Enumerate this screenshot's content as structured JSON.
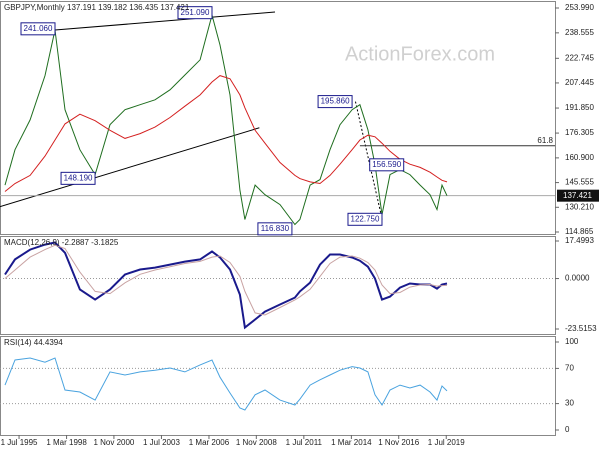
{
  "chart_data": [
    {
      "type": "line",
      "title": "GBPJPY,Monthly  137.191 139.182 136.435 137.421",
      "watermark": "ActionForex.com",
      "x": [
        1994.71,
        1995.27,
        1996.12,
        1996.96,
        1997.52,
        1998.08,
        1998.92,
        1999.77,
        2000.61,
        2001.45,
        2002.3,
        2003.14,
        2003.98,
        2004.82,
        2005.67,
        2006.34,
        2006.79,
        2007.35,
        2007.91,
        2008.19,
        2008.76,
        2009.32,
        2010.16,
        2011.0,
        2011.28,
        2011.85,
        2012.41,
        2012.97,
        2013.53,
        2014.21,
        2014.65,
        2015.1,
        2015.5,
        2015.89,
        2016.34,
        2016.9,
        2017.46,
        2018.03,
        2018.59,
        2018.98,
        2019.26,
        2019.54
      ],
      "series": [
        {
          "color": "#1f6e1f",
          "values": [
            144,
            166,
            184.5,
            212,
            240.3,
            190.8,
            166,
            150.5,
            181.5,
            190.8,
            193.9,
            197,
            203.2,
            212.4,
            221.8,
            249.6,
            231,
            200,
            141,
            122.6,
            144,
            138,
            131.9,
            119.5,
            122.6,
            144,
            147.4,
            166,
            181.5,
            190.8,
            193.9,
            178.4,
            156.7,
            125.7,
            150.5,
            153.6,
            150.5,
            144,
            138,
            128.8,
            144,
            137.421
          ]
        },
        {
          "color": "#d42020",
          "values": [
            140,
            145,
            150,
            162,
            172,
            182,
            188,
            184,
            178,
            173,
            176,
            180,
            186,
            193,
            200,
            208,
            212,
            210,
            200,
            192,
            178,
            170,
            158,
            150,
            148,
            146,
            145,
            150,
            157,
            166,
            172,
            175,
            174,
            170,
            165,
            160,
            157,
            155,
            152,
            149,
            147,
            146
          ]
        }
      ],
      "annotations": [
        {
          "value": 241.06,
          "label": "241.060",
          "x": 1997.52
        },
        {
          "value": 148.19,
          "label": "148.190",
          "x": 1999.77
        },
        {
          "value": 251.09,
          "label": "251.090",
          "x": 2006.34
        },
        {
          "value": 116.83,
          "label": "116.830",
          "x": 2010.83
        },
        {
          "value": 195.86,
          "label": "195.860",
          "x": 2014.21
        },
        {
          "value": 156.59,
          "label": "156.590",
          "x": 2015.2
        },
        {
          "value": 122.75,
          "label": "122.750",
          "x": 2015.89
        }
      ],
      "trend_lines": [
        {
          "x": [
            1994.43,
            2009.0
          ],
          "y": [
            130.6,
            179.6
          ],
          "color": "#000000"
        },
        {
          "x": [
            1997.52,
            2009.88
          ],
          "y": [
            240.3,
            251.5
          ],
          "color": "#000000"
        },
        {
          "x": [
            2014.4,
            2015.9
          ],
          "y": [
            195.86,
            122.75
          ],
          "color": "#000000",
          "dash": true
        }
      ],
      "fib": {
        "level": 61.8,
        "y": 168.4,
        "x": [
          2014.65,
          2025.61
        ]
      },
      "last": 137.421,
      "xlim": [
        1994.43,
        2025.61
      ],
      "ylim": [
        113.62,
        258.34
      ],
      "yticks": [
        {
          "value": 253.99,
          "label": "253.990"
        },
        238.555,
        222.745,
        207.445,
        {
          "value": 191.85,
          "label": "191.850"
        },
        176.305,
        {
          "value": 160.9,
          "label": "160.900"
        },
        145.555,
        {
          "value": 130.21,
          "label": "130.210"
        },
        114.865
      ]
    },
    {
      "type": "line",
      "title": "MACD(12,26,9) -2.2887 -3.1825",
      "x": [
        1994.71,
        1995.27,
        1996.12,
        1996.96,
        1997.52,
        1998.08,
        1998.92,
        1999.77,
        2000.61,
        2001.45,
        2002.3,
        2003.14,
        2003.98,
        2004.82,
        2005.67,
        2006.34,
        2006.79,
        2007.35,
        2007.91,
        2008.19,
        2008.76,
        2009.32,
        2010.16,
        2011.0,
        2011.28,
        2011.85,
        2012.41,
        2012.97,
        2013.53,
        2014.21,
        2014.65,
        2015.1,
        2015.5,
        2015.89,
        2016.34,
        2016.9,
        2017.46,
        2018.03,
        2018.59,
        2018.98,
        2019.26,
        2019.54
      ],
      "series": [
        {
          "color": "#1a1a8c",
          "values": [
            1.9,
            8.9,
            13.5,
            15.8,
            16.8,
            12,
            -5.1,
            -9.8,
            -5.1,
            1.9,
            4.2,
            5.1,
            6.5,
            7.9,
            8.9,
            12.6,
            9.8,
            4.2,
            -7.5,
            -22.8,
            -19.1,
            -15.4,
            -12.1,
            -8.9,
            -6,
            -1.9,
            6.5,
            11.2,
            11.2,
            9.8,
            8.3,
            5.5,
            0,
            -9.8,
            -8.4,
            -4.2,
            -2.3,
            -2.8,
            -2.8,
            -4.7,
            -2.8,
            -2.3
          ]
        },
        {
          "color": "#c9a3a3",
          "values": [
            0,
            4,
            10,
            13.5,
            15.5,
            14,
            3,
            -6,
            -7,
            -2,
            2,
            4,
            5.5,
            7,
            8,
            10,
            10.5,
            7.5,
            1,
            -6,
            -16,
            -17,
            -13.5,
            -10,
            -8.5,
            -5,
            1,
            7,
            10,
            10.5,
            9.5,
            7.5,
            4,
            -3,
            -7,
            -6.5,
            -4,
            -3,
            -2.8,
            -3.5,
            -3.3,
            -3.2
          ]
        }
      ],
      "reference_lines": [
        0
      ],
      "xlim": [
        1994.43,
        2025.61
      ],
      "ylim": [
        -25.85,
        19.83
      ],
      "yticks": [
        17.4993,
        {
          "value": 0,
          "label": "0.0000"
        },
        -23.5153
      ]
    },
    {
      "type": "line",
      "title": "RSI(14) 44.4394",
      "x": [
        1994.71,
        1995.27,
        1996.12,
        1996.96,
        1997.52,
        1998.08,
        1998.92,
        1999.77,
        2000.61,
        2001.45,
        2002.3,
        2003.14,
        2003.98,
        2004.82,
        2005.67,
        2006.34,
        2006.79,
        2007.35,
        2007.91,
        2008.19,
        2008.76,
        2009.32,
        2010.16,
        2011.0,
        2011.28,
        2011.85,
        2012.41,
        2012.97,
        2013.53,
        2014.21,
        2014.65,
        2015.1,
        2015.5,
        2015.89,
        2016.34,
        2016.9,
        2017.46,
        2018.03,
        2018.59,
        2018.98,
        2019.26,
        2019.54
      ],
      "series": [
        {
          "color": "#4aa3df",
          "values": [
            51,
            79.5,
            81.8,
            77,
            81.8,
            45.5,
            43.2,
            34,
            66,
            62.5,
            66,
            68,
            70.5,
            66,
            74,
            79.5,
            60,
            42,
            25,
            22.7,
            40,
            45.5,
            34,
            28.4,
            35,
            51,
            57,
            62.5,
            68,
            72,
            70.5,
            66,
            40,
            28.4,
            45.5,
            51,
            47.7,
            51,
            43.2,
            34,
            50,
            44.4394
          ]
        }
      ],
      "reference_lines": [
        70,
        30
      ],
      "xlim": [
        1994.43,
        2025.61
      ],
      "ylim": [
        -5.68,
        106.82
      ],
      "yticks": [
        100,
        70,
        30,
        0
      ],
      "xticks": [
        {
          "value": 1995.5,
          "label": "1 Jul 1995"
        },
        {
          "value": 1998.17,
          "label": "1 Mar 1998"
        },
        {
          "value": 2000.83,
          "label": "1 Nov 2000"
        },
        {
          "value": 2003.5,
          "label": "1 Jul 2003"
        },
        {
          "value": 2006.17,
          "label": "1 Mar 2006"
        },
        {
          "value": 2008.83,
          "label": "1 Nov 2008"
        },
        {
          "value": 2011.5,
          "label": "1 Jul 2011"
        },
        {
          "value": 2014.17,
          "label": "1 Mar 2014"
        },
        {
          "value": 2016.83,
          "label": "1 Nov 2016"
        },
        {
          "value": 2019.5,
          "label": "1 Jul 2019"
        }
      ]
    }
  ]
}
